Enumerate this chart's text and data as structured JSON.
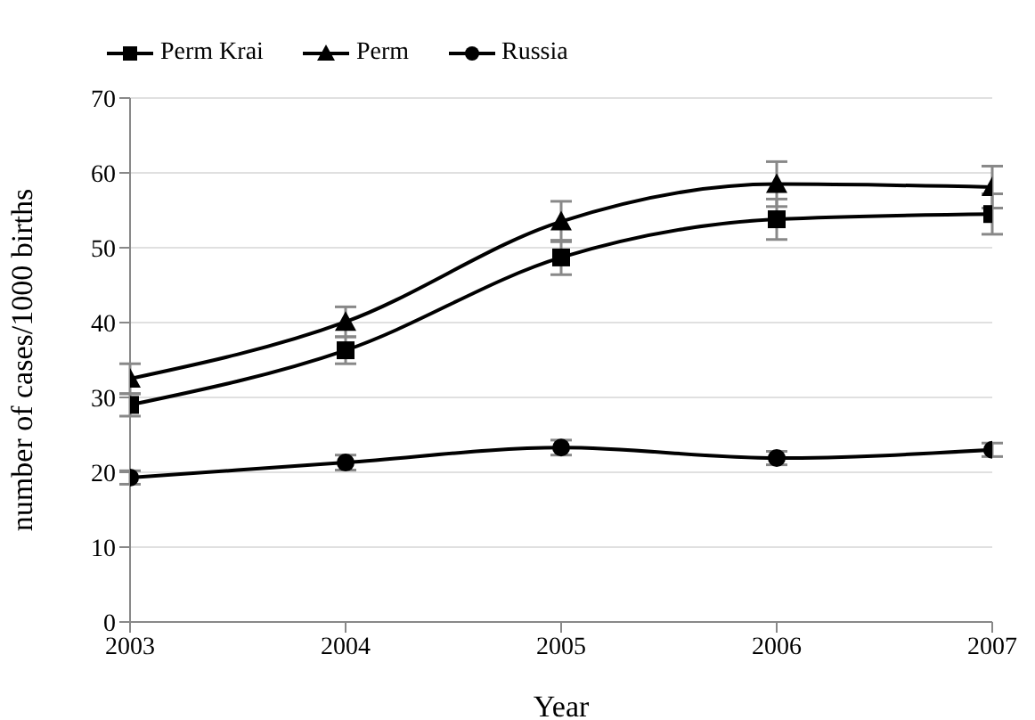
{
  "chart_data": {
    "type": "line",
    "xlabel": "Year",
    "ylabel": "number of cases/1000 births",
    "x": [
      2003,
      2004,
      2005,
      2006,
      2007
    ],
    "xlim": [
      2003,
      2007
    ],
    "xticks": [
      2003,
      2004,
      2005,
      2006,
      2007
    ],
    "ylim": [
      0,
      70
    ],
    "yticks": [
      0,
      10,
      20,
      30,
      40,
      50,
      60,
      70
    ],
    "grid": "y",
    "legend": "top",
    "line_style": "solid",
    "series": [
      {
        "name": "Perm Krai",
        "color": "#000000",
        "marker": "square",
        "values": [
          29,
          36.3,
          48.7,
          53.8,
          54.5
        ],
        "errors": [
          1.5,
          1.8,
          2.3,
          2.7,
          2.7
        ]
      },
      {
        "name": "Perm",
        "color": "#000000",
        "marker": "triangle",
        "values": [
          32.5,
          40.1,
          53.5,
          58.5,
          58.1
        ],
        "errors": [
          2,
          2,
          2.7,
          3,
          2.8
        ]
      },
      {
        "name": "Russia",
        "color": "#000000",
        "marker": "circle",
        "values": [
          19.3,
          21.3,
          23.3,
          21.9,
          23
        ],
        "errors": [
          0.9,
          1,
          1,
          0.9,
          0.9
        ]
      }
    ]
  }
}
